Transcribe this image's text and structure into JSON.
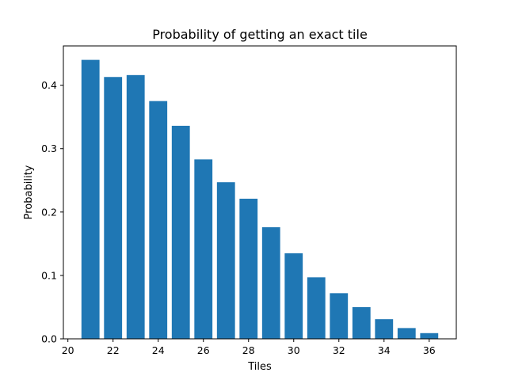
{
  "chart_data": {
    "type": "bar",
    "title": "Probability of getting an exact tile",
    "xlabel": "Tiles",
    "ylabel": "Probability",
    "color": "#1f77b4",
    "x": [
      21,
      22,
      23,
      24,
      25,
      26,
      27,
      28,
      29,
      30,
      31,
      32,
      33,
      34,
      35,
      36
    ],
    "values": [
      0.44,
      0.413,
      0.416,
      0.375,
      0.336,
      0.283,
      0.247,
      0.221,
      0.176,
      0.135,
      0.097,
      0.072,
      0.05,
      0.031,
      0.017,
      0.009
    ],
    "xlim": [
      19.8,
      37.2
    ],
    "ylim": [
      0,
      0.462
    ],
    "xticks": [
      20,
      22,
      24,
      26,
      28,
      30,
      32,
      34,
      36
    ],
    "yticks": [
      0.0,
      0.1,
      0.2,
      0.3,
      0.4
    ],
    "ytick_labels": [
      "0.0",
      "0.1",
      "0.2",
      "0.3",
      "0.4"
    ],
    "grid": false,
    "legend": "none"
  }
}
